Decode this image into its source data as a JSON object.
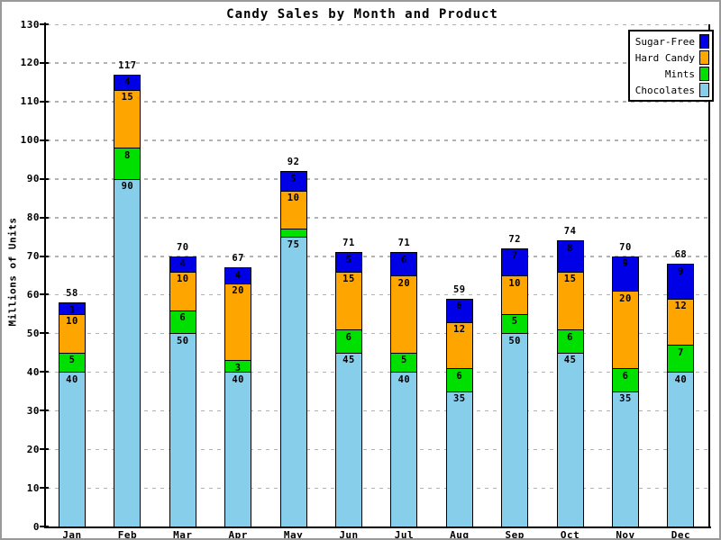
{
  "frame": {
    "background": "#FFFFFF",
    "border_color": "#999999"
  },
  "chart_data": {
    "type": "bar",
    "stacked": true,
    "title": "Candy Sales by Month and Product",
    "ylabel": "Millions of Units",
    "xlabel": "",
    "categories": [
      "Jan",
      "Feb",
      "Mar",
      "Apr",
      "May",
      "Jun",
      "Jul",
      "Aug",
      "Sep",
      "Oct",
      "Nov",
      "Dec"
    ],
    "series": [
      {
        "name": "Chocolates",
        "color": "#87CEEB",
        "values": [
          40,
          90,
          50,
          40,
          75,
          45,
          40,
          35,
          50,
          45,
          35,
          40
        ]
      },
      {
        "name": "Mints",
        "color": "#00E000",
        "values": [
          5,
          8,
          6,
          3,
          2,
          6,
          5,
          6,
          5,
          6,
          6,
          7
        ]
      },
      {
        "name": "Hard Candy",
        "color": "#FFA500",
        "values": [
          10,
          15,
          10,
          20,
          10,
          15,
          20,
          12,
          10,
          15,
          20,
          12
        ]
      },
      {
        "name": "Sugar-Free",
        "color": "#0000E6",
        "values": [
          3,
          4,
          4,
          4,
          5,
          5,
          6,
          6,
          7,
          8,
          9,
          9
        ]
      }
    ],
    "totals": [
      58,
      117,
      70,
      67,
      92,
      71,
      71,
      59,
      72,
      74,
      70,
      68
    ],
    "ylim": [
      0,
      130
    ],
    "ytick_step": 10,
    "yticks": [
      0,
      10,
      20,
      30,
      40,
      50,
      60,
      70,
      80,
      90,
      100,
      110,
      120,
      130
    ],
    "grid": {
      "axis": "y",
      "style": "dashed",
      "color": "#B2B2B2"
    },
    "axis_color": "#000000",
    "text_color": "#000000",
    "legend": {
      "position": "top-right",
      "entries": [
        {
          "label": "Sugar-Free",
          "color": "#0000E6"
        },
        {
          "label": "Hard Candy",
          "color": "#FFA500"
        },
        {
          "label": "Mints",
          "color": "#00E000"
        },
        {
          "label": "Chocolates",
          "color": "#87CEEB"
        }
      ]
    }
  }
}
